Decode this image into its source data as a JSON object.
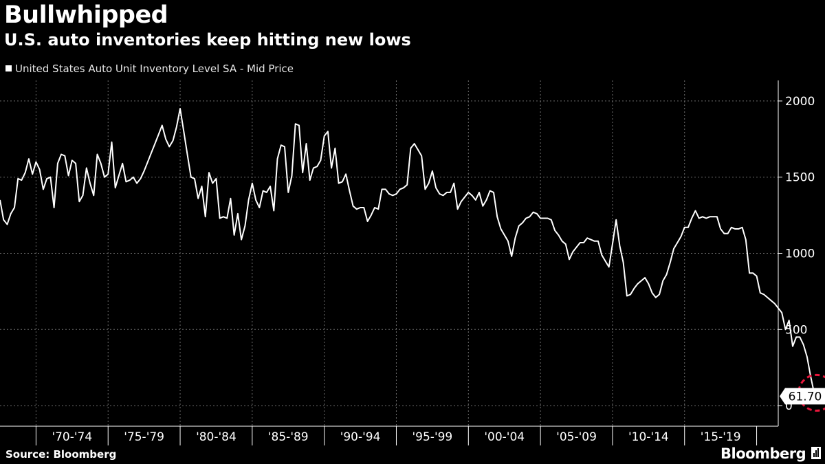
{
  "header": {
    "title": "Bullwhipped",
    "subtitle": "U.S. auto inventories keep hitting new lows"
  },
  "legend": {
    "label": "United States Auto Unit Inventory Level SA - Mid Price"
  },
  "footer": {
    "source": "Source: Bloomberg",
    "brand": "Bloomberg"
  },
  "colors": {
    "background": "#000000",
    "line": "#ffffff",
    "grid": "#6e6e6e",
    "highlight": "#e8173c"
  },
  "chart_data": {
    "type": "line",
    "title": "Bullwhipped",
    "subtitle": "U.S. auto inventories keep hitting new lows",
    "series": [
      {
        "name": "United States Auto Unit Inventory Level SA - Mid Price",
        "x_start_year": 1967.5,
        "step_years": 0.25,
        "values": [
          1350,
          1220,
          1190,
          1260,
          1300,
          1490,
          1480,
          1530,
          1620,
          1520,
          1600,
          1550,
          1420,
          1490,
          1500,
          1300,
          1590,
          1650,
          1640,
          1510,
          1610,
          1590,
          1340,
          1380,
          1560,
          1460,
          1380,
          1650,
          1590,
          1500,
          1520,
          1730,
          1430,
          1510,
          1590,
          1470,
          1480,
          1500,
          1460,
          1490,
          1540,
          1600,
          1660,
          1720,
          1780,
          1840,
          1750,
          1700,
          1740,
          1830,
          1950,
          1800,
          1650,
          1500,
          1490,
          1360,
          1440,
          1240,
          1530,
          1460,
          1490,
          1230,
          1240,
          1230,
          1360,
          1120,
          1260,
          1090,
          1180,
          1350,
          1460,
          1350,
          1300,
          1410,
          1400,
          1440,
          1280,
          1620,
          1710,
          1700,
          1400,
          1510,
          1850,
          1840,
          1530,
          1720,
          1480,
          1560,
          1570,
          1610,
          1770,
          1800,
          1560,
          1690,
          1460,
          1470,
          1520,
          1410,
          1310,
          1290,
          1300,
          1300,
          1210,
          1250,
          1300,
          1290,
          1420,
          1420,
          1390,
          1380,
          1390,
          1420,
          1430,
          1450,
          1690,
          1720,
          1680,
          1640,
          1420,
          1460,
          1540,
          1430,
          1390,
          1380,
          1400,
          1400,
          1460,
          1290,
          1340,
          1370,
          1400,
          1380,
          1350,
          1400,
          1310,
          1350,
          1410,
          1400,
          1240,
          1160,
          1120,
          1080,
          980,
          1100,
          1180,
          1200,
          1230,
          1240,
          1270,
          1260,
          1230,
          1230,
          1230,
          1220,
          1150,
          1120,
          1080,
          1060,
          960,
          1010,
          1040,
          1070,
          1070,
          1100,
          1090,
          1080,
          1080,
          990,
          950,
          910,
          1060,
          1220,
          1050,
          940,
          720,
          730,
          770,
          800,
          820,
          840,
          800,
          740,
          710,
          730,
          820,
          860,
          940,
          1030,
          1070,
          1110,
          1170,
          1170,
          1230,
          1280,
          1230,
          1240,
          1230,
          1240,
          1240,
          1240,
          1160,
          1130,
          1130,
          1170,
          1160,
          1160,
          1170,
          1090,
          870,
          870,
          850,
          740,
          730,
          710,
          690,
          670,
          640,
          610,
          500,
          560,
          390,
          450,
          450,
          400,
          320,
          190,
          80,
          61.7
        ]
      }
    ],
    "last_value_label": "61.70",
    "x_labels": [
      "'70-'74",
      "'75-'79",
      "'80-'84",
      "'85-'89",
      "'90-'94",
      "'95-'99",
      "'00-'04",
      "'05-'09",
      "'10-'14",
      "'15-'19"
    ],
    "x_label_starts": [
      1970,
      1975,
      1980,
      1985,
      1990,
      1995,
      2000,
      2005,
      2010,
      2015
    ],
    "x_range": [
      1967.5,
      2021.5
    ],
    "y_ticks": [
      0,
      500,
      1000,
      1500,
      2000
    ],
    "ylim": [
      -135,
      2135
    ],
    "y_axis_side": "right",
    "grid": true,
    "annotation": "dashed circle highlighting the latest low"
  }
}
